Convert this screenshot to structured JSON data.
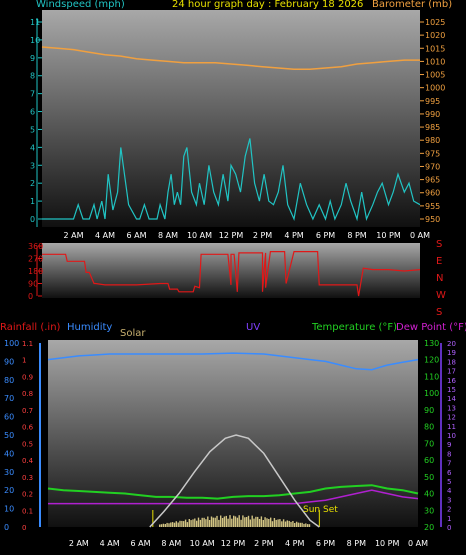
{
  "header": {
    "left": "Windspeed (mph)",
    "center": "24 hour graph day : February 18 2026",
    "right": "Barometer (mb)"
  },
  "colors": {
    "wind": "#21c4c4",
    "barometer": "#f0a040",
    "direction": "#e01818",
    "humidity": "#3a8cff",
    "temperature": "#22d022",
    "dewpoint": "#b020d0",
    "solar": "#c8b070",
    "uv": "#8040ff",
    "rain": "#3a8cff",
    "axis_text": "#ffffff",
    "panel_top": "#a0a0a0",
    "panel_bottom": "#141414"
  },
  "x_ticks": [
    "2 AM",
    "4 AM",
    "6 AM",
    "8 AM",
    "10 AM",
    "12 PM",
    "2 PM",
    "4 PM",
    "6 PM",
    "8 PM",
    "10 PM",
    "0 AM"
  ],
  "wind_panel": {
    "left_axis": {
      "min": 0,
      "max": 11,
      "ticks": [
        0,
        1,
        2,
        3,
        4,
        5,
        6,
        7,
        8,
        9,
        10,
        11
      ]
    },
    "right_axis": {
      "min": 950,
      "max": 1025,
      "ticks": [
        950,
        955,
        960,
        965,
        970,
        975,
        980,
        985,
        990,
        995,
        1000,
        1005,
        1010,
        1015,
        1020,
        1025
      ]
    },
    "chart_data": {
      "type": "line",
      "series": [
        {
          "key": "barometer",
          "axis": "right",
          "x": [
            0,
            1,
            2,
            3,
            4,
            5,
            6,
            7,
            8,
            9,
            10,
            11,
            12,
            13,
            14,
            15,
            16,
            17,
            18,
            19,
            20,
            21,
            22,
            23,
            24
          ],
          "values": [
            1015.5,
            1015,
            1014.5,
            1013.5,
            1012.5,
            1012,
            1011,
            1010.5,
            1010,
            1009.5,
            1009.5,
            1009.5,
            1009,
            1008.5,
            1008,
            1007.5,
            1007,
            1007,
            1007.5,
            1008,
            1009,
            1009.5,
            1010,
            1010.5,
            1010.5
          ]
        },
        {
          "key": "wind",
          "axis": "left",
          "x": [
            0,
            0.5,
            1,
            1.5,
            2,
            2.3,
            2.6,
            3,
            3.3,
            3.5,
            3.8,
            4,
            4.2,
            4.5,
            4.8,
            5,
            5.5,
            6,
            6.2,
            6.5,
            6.8,
            7,
            7.3,
            7.5,
            7.8,
            8,
            8.2,
            8.4,
            8.6,
            8.8,
            9,
            9.2,
            9.5,
            9.8,
            10,
            10.3,
            10.6,
            10.9,
            11.2,
            11.5,
            11.8,
            12,
            12.3,
            12.6,
            12.9,
            13.2,
            13.5,
            13.8,
            14.1,
            14.4,
            14.7,
            15,
            15.3,
            15.6,
            16,
            16.4,
            16.8,
            17.2,
            17.6,
            18,
            18.3,
            18.6,
            19,
            19.3,
            19.6,
            20,
            20.3,
            20.6,
            21,
            21.3,
            21.6,
            22,
            22.3,
            22.6,
            23,
            23.3,
            23.6,
            24
          ],
          "values": [
            0,
            0,
            0,
            0,
            0,
            0.8,
            0,
            0,
            0.8,
            0,
            1,
            0,
            2.5,
            0.5,
            1.5,
            4,
            0.8,
            0,
            0,
            0.8,
            0,
            0,
            0,
            0.8,
            0,
            1.5,
            2.5,
            0.8,
            1.5,
            0.8,
            3.5,
            4,
            1.5,
            0.8,
            2,
            0.8,
            3,
            1.5,
            0.8,
            2.5,
            1,
            3,
            2.5,
            1.5,
            3.5,
            4.5,
            2,
            1,
            2.5,
            1,
            0.8,
            1.5,
            3,
            0.8,
            0,
            2,
            0.8,
            0,
            0.8,
            0,
            1,
            0,
            0.8,
            2,
            1,
            0,
            1.5,
            0,
            0.8,
            1.5,
            2,
            0.8,
            1.5,
            2.5,
            1.5,
            2,
            1,
            0.8
          ]
        }
      ]
    }
  },
  "direction_panel": {
    "left_axis": {
      "min": 0,
      "max": 360,
      "ticks": [
        0,
        90,
        180,
        270,
        360
      ]
    },
    "right_labels": [
      "S",
      "E",
      "N",
      "W",
      "S"
    ],
    "chart_data": {
      "type": "line",
      "series": [
        {
          "key": "direction",
          "x": [
            0,
            1.5,
            1.6,
            2,
            2.7,
            2.8,
            3,
            3.3,
            3.4,
            4,
            6,
            7.5,
            8,
            8.1,
            8.6,
            8.7,
            9.6,
            9.7,
            10,
            10.1,
            10.4,
            10.5,
            11.8,
            12,
            12,
            12.2,
            12.4,
            12.5,
            14,
            14,
            14.2,
            14.2,
            14.5,
            14.6,
            15.4,
            15.5,
            16,
            16.1,
            17.5,
            17.6,
            19,
            20,
            20.1,
            20.4,
            21,
            22,
            23,
            24
          ],
          "values": [
            300,
            300,
            250,
            250,
            250,
            170,
            170,
            90,
            90,
            80,
            80,
            90,
            90,
            50,
            50,
            30,
            30,
            70,
            60,
            300,
            300,
            300,
            300,
            80,
            300,
            300,
            30,
            310,
            310,
            30,
            310,
            60,
            320,
            320,
            320,
            90,
            320,
            320,
            320,
            80,
            80,
            80,
            0,
            200,
            190,
            190,
            180,
            190
          ]
        }
      ]
    }
  },
  "lower_panel": {
    "labels": {
      "rain": "Rainfall (.in)",
      "humidity": "Humidity",
      "solar": "Solar",
      "uv": "UV",
      "temperature": "Temperature (°F)",
      "dewpoint": "Dew Point (°F)",
      "sunset": "Sun Set"
    },
    "humidity_axis": {
      "min": 0,
      "max": 100,
      "ticks": [
        0,
        10,
        20,
        30,
        40,
        50,
        60,
        70,
        80,
        90,
        100
      ]
    },
    "rain_axis": {
      "min": 0,
      "max": 1.1,
      "ticks": [
        "0",
        "0.1",
        "0.2",
        "0.3",
        "0.4",
        "0.5",
        "0.6",
        "0.7",
        "0.8",
        "0.9",
        "1",
        "1.1"
      ]
    },
    "temp_axis": {
      "min": 20,
      "max": 130,
      "ticks": [
        20,
        30,
        40,
        50,
        60,
        70,
        80,
        90,
        100,
        110,
        120,
        130
      ]
    },
    "uv_axis": {
      "min": 0,
      "max": 20,
      "ticks": [
        0,
        1,
        2,
        3,
        4,
        5,
        6,
        7,
        8,
        9,
        10,
        11,
        12,
        13,
        14,
        15,
        16,
        17,
        18,
        19,
        20
      ]
    },
    "chart_data": {
      "type": "line",
      "series": [
        {
          "key": "humidity",
          "axis": "humidity",
          "x": [
            0,
            1,
            2,
            3,
            4,
            6,
            8,
            10,
            12,
            14,
            15,
            16,
            17,
            18,
            19,
            20,
            21,
            22,
            23,
            24
          ],
          "values": [
            91,
            92,
            93,
            93.5,
            94,
            94,
            94,
            94,
            94.5,
            94,
            93,
            92,
            91,
            90,
            88,
            86,
            85.5,
            88,
            89.5,
            91
          ]
        },
        {
          "key": "temperature",
          "axis": "temp",
          "x": [
            0,
            1,
            2,
            3,
            4,
            5,
            6,
            7,
            8,
            9,
            10,
            11,
            12,
            13,
            14,
            15,
            16,
            17,
            18,
            19,
            20,
            21,
            22,
            23,
            24
          ],
          "values": [
            43,
            42,
            41.5,
            41,
            40.5,
            40,
            39,
            38,
            38,
            37.5,
            37.5,
            37,
            38,
            38.5,
            38.5,
            39,
            40,
            41,
            43,
            44,
            44.5,
            45,
            43,
            42,
            40
          ]
        },
        {
          "key": "dewpoint",
          "axis": "temp",
          "x": [
            0,
            1,
            2,
            3,
            4,
            5,
            6,
            7,
            8,
            9,
            10,
            11,
            12,
            13,
            14,
            15,
            16,
            17,
            18,
            19,
            20,
            21,
            22,
            23,
            24
          ],
          "values": [
            34,
            34,
            34,
            34,
            34,
            34,
            34,
            34,
            34,
            34,
            34,
            34,
            34,
            34,
            34,
            34,
            34,
            35,
            36,
            38,
            40,
            42,
            40,
            38,
            37
          ]
        },
        {
          "key": "solar",
          "axis": "temp",
          "x": [
            6.6,
            7.5,
            8.5,
            9.5,
            10.5,
            11.5,
            12.2,
            13,
            14,
            15,
            16,
            17,
            17.6
          ],
          "values": [
            20,
            29,
            40,
            53,
            65,
            73,
            75,
            73,
            64,
            50,
            36,
            24,
            20
          ]
        }
      ]
    }
  }
}
